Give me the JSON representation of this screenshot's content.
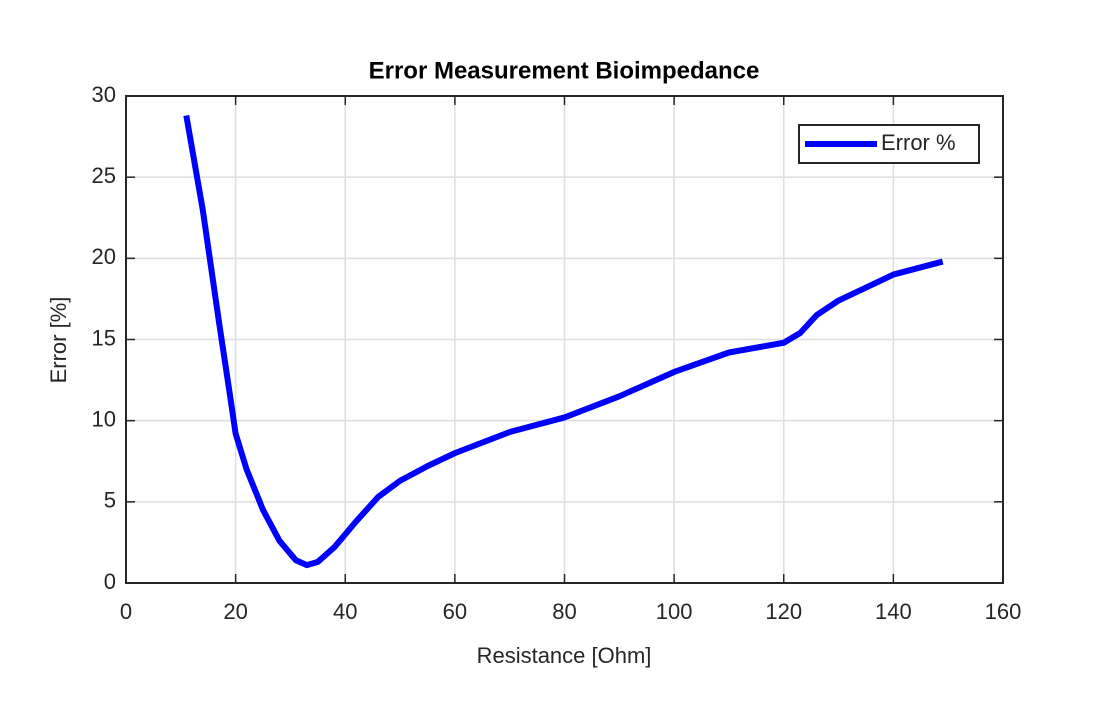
{
  "chart_data": {
    "type": "line",
    "title": "Error Measurement Bioimpedance",
    "x_label": "Resistance [Ohm]",
    "y_label": "Error [%]",
    "x": [
      11,
      14,
      17,
      19,
      20,
      22,
      25,
      28,
      31,
      33,
      35,
      38,
      42,
      46,
      50,
      55,
      60,
      70,
      80,
      90,
      100,
      110,
      120,
      123,
      126,
      130,
      140,
      149
    ],
    "series": [
      {
        "name": "Error %",
        "color": "#0000ff",
        "values": [
          28.8,
          23,
          16,
          11.5,
          9.2,
          7,
          4.5,
          2.6,
          1.4,
          1.1,
          1.3,
          2.2,
          3.8,
          5.3,
          6.3,
          7.2,
          8.0,
          9.3,
          10.2,
          11.5,
          13.0,
          14.2,
          14.8,
          15.4,
          16.5,
          17.4,
          19.0,
          19.8
        ]
      }
    ],
    "xlim": [
      0,
      160
    ],
    "xticks": [
      0,
      20,
      40,
      60,
      80,
      100,
      120,
      140,
      160
    ],
    "ylim": [
      0,
      30
    ],
    "yticks": [
      0,
      5,
      10,
      15,
      20,
      25,
      30
    ],
    "grid": true,
    "legend_position": "upper right"
  }
}
